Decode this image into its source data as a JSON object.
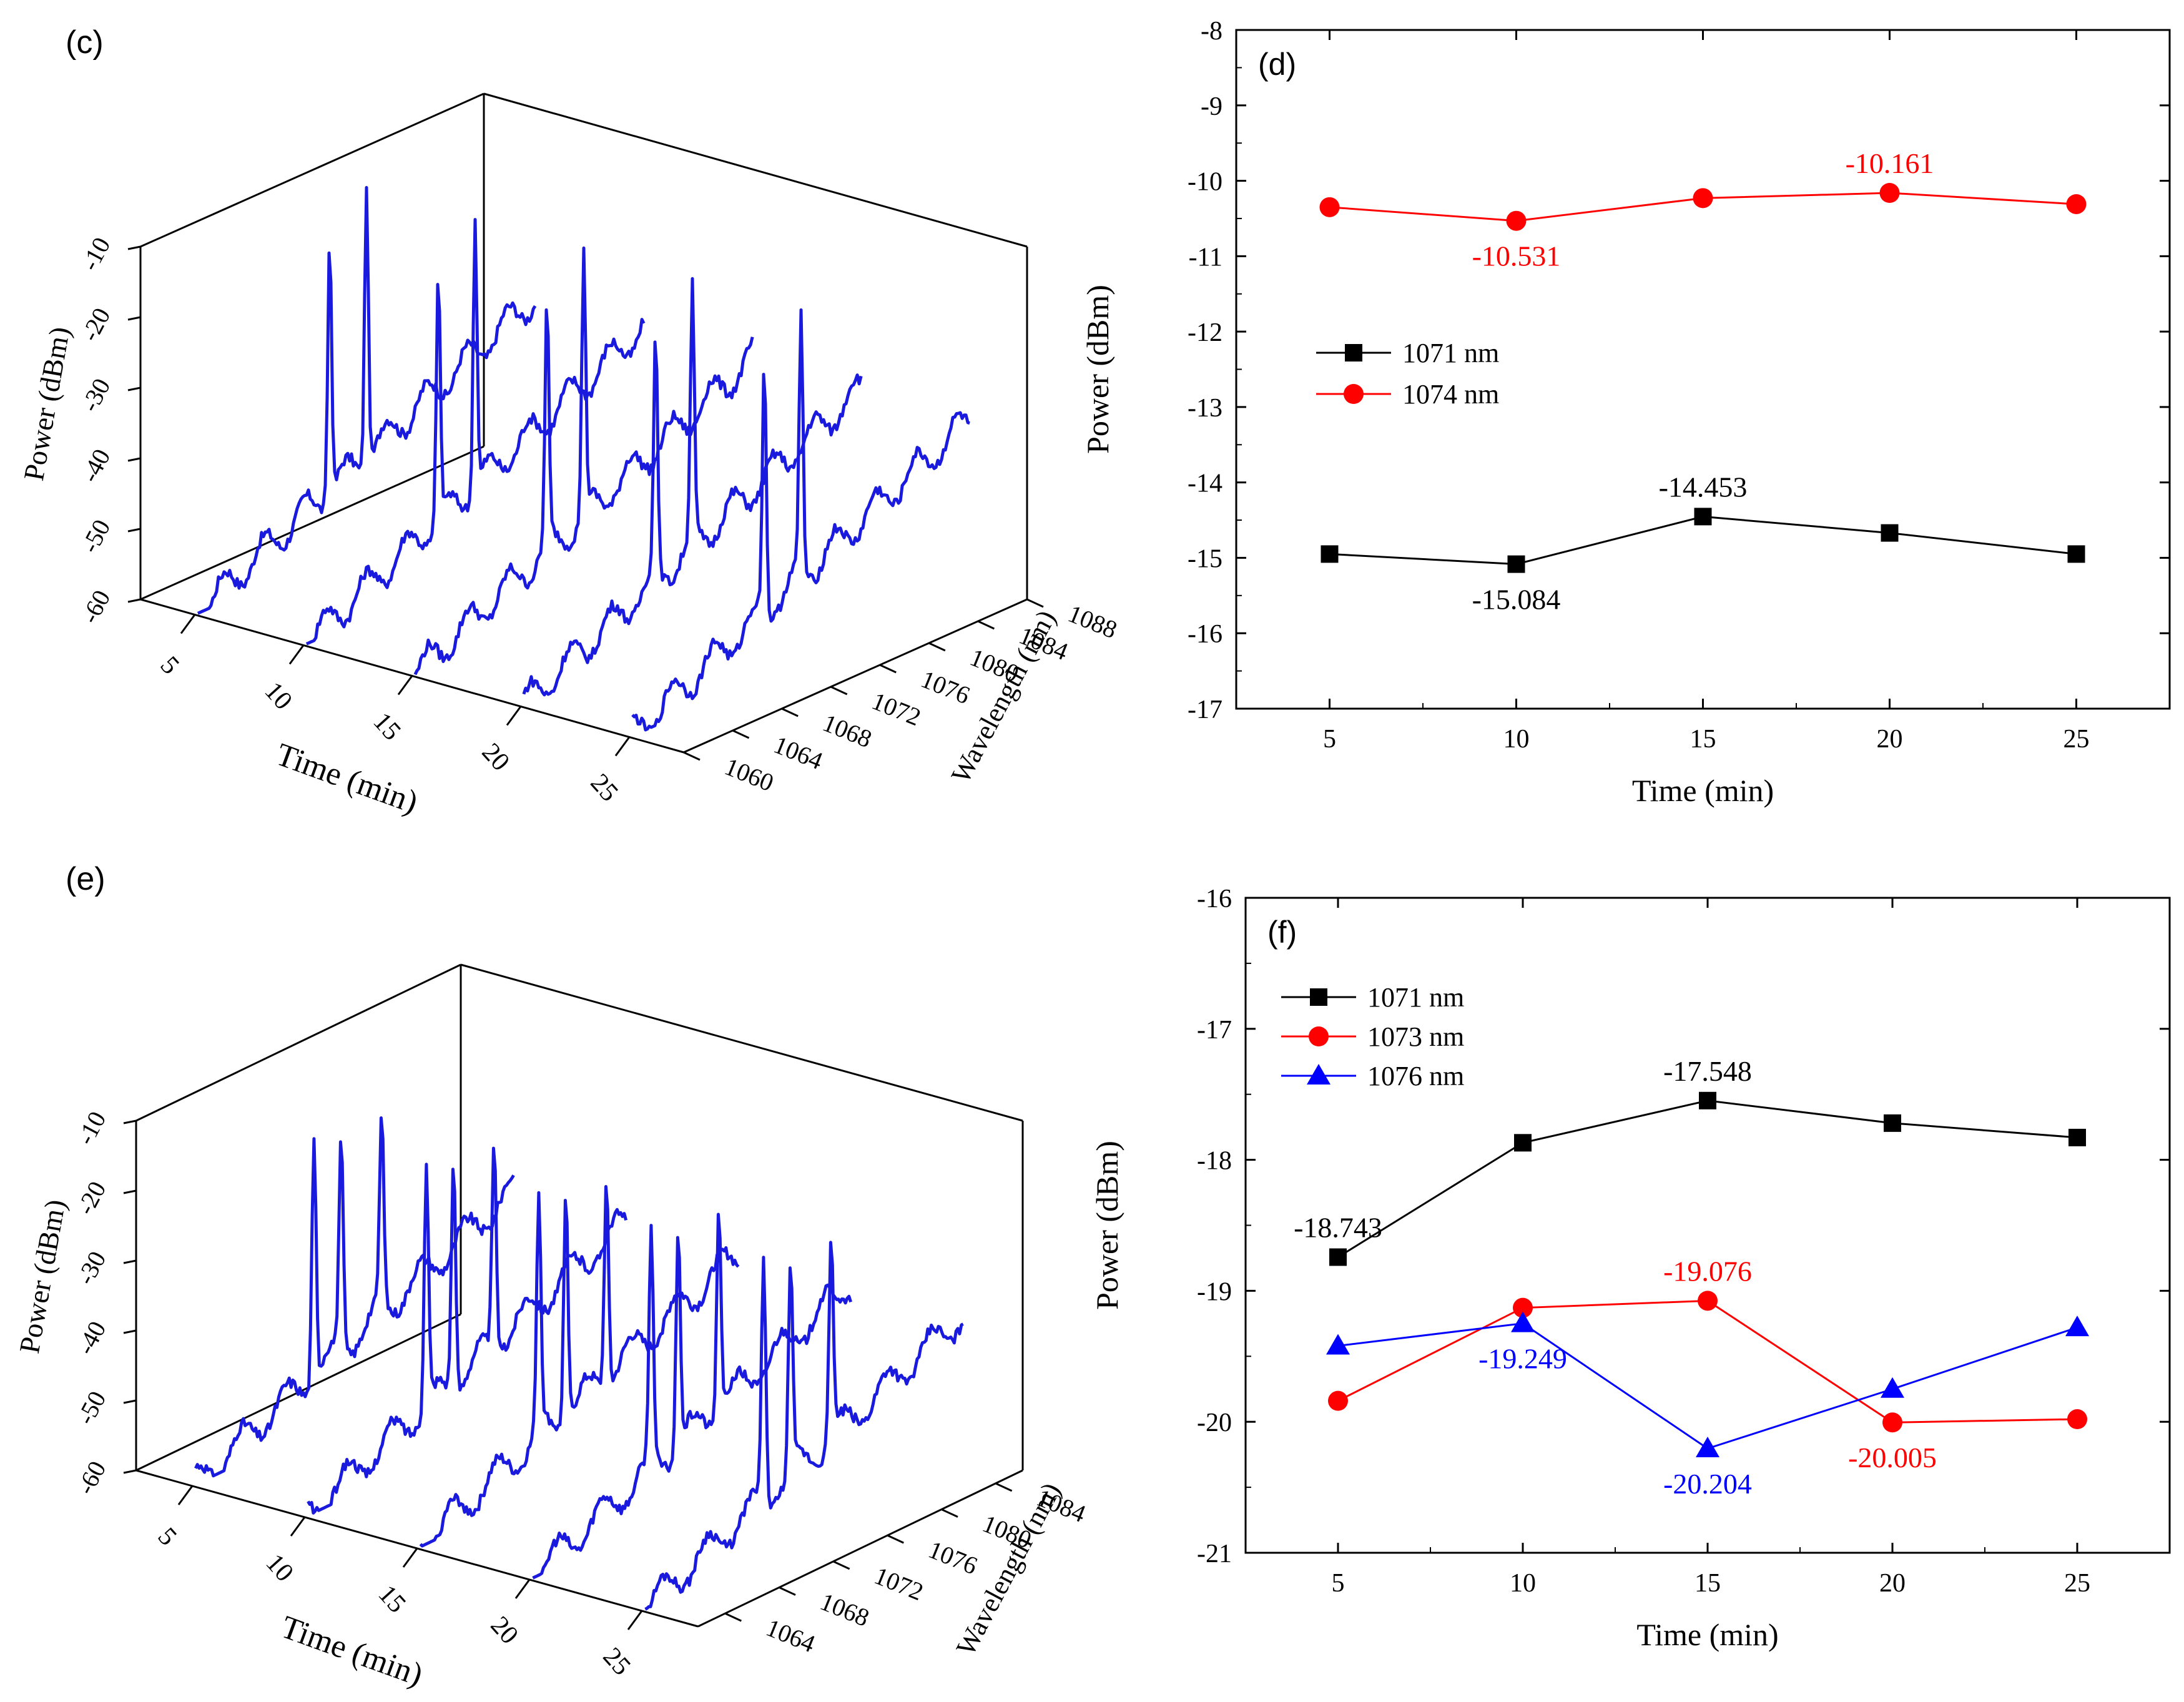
{
  "chart_data": [
    {
      "panel": "c",
      "type": "waterfall-3d",
      "label": "(c)",
      "xlabel": "Time (min)",
      "ylabel": "Wavelength (nm)",
      "zlabel": "Power (dBm)",
      "time_ticks": [
        "5",
        "10",
        "15",
        "20",
        "25"
      ],
      "wavelength_ticks": [
        "1060",
        "1064",
        "1068",
        "1072",
        "1076",
        "1080",
        "1084",
        "1088"
      ],
      "power_ticks": [
        "-60",
        "-50",
        "-40",
        "-30",
        "-20",
        "-10"
      ],
      "wavelength_range": [
        1060,
        1088
      ],
      "power_range": [
        -60,
        -10
      ],
      "time_values": [
        5,
        10,
        15,
        20,
        25
      ],
      "series_color": "#1a1adf",
      "peaks_nm": [
        1071,
        1074
      ],
      "peak_power_dBm": [
        [
          -14.9,
          -10.3
        ],
        [
          -15.1,
          -10.5
        ],
        [
          -14.5,
          -10.2
        ],
        [
          -14.7,
          -10.2
        ],
        [
          -14.9,
          -10.3
        ]
      ]
    },
    {
      "panel": "d",
      "type": "line",
      "label": "(d)",
      "xlabel": "Time (min)",
      "ylabel": "Power (dBm)",
      "x": [
        5,
        10,
        15,
        20,
        25
      ],
      "x_ticks": [
        "5",
        "10",
        "15",
        "20",
        "25"
      ],
      "y_ticks": [
        "-17",
        "-16",
        "-15",
        "-14",
        "-13",
        "-12",
        "-11",
        "-10",
        "-9",
        "-8"
      ],
      "xlim": [
        2.5,
        27.5
      ],
      "ylim": [
        -17,
        -8
      ],
      "legend_position": "middle-left",
      "series": [
        {
          "name": "1071 nm",
          "marker": "square",
          "color": "#000000",
          "values": [
            -14.95,
            -15.084,
            -14.453,
            -14.67,
            -14.95
          ]
        },
        {
          "name": "1074 nm",
          "marker": "circle",
          "color": "#ff0000",
          "values": [
            -10.35,
            -10.531,
            -10.23,
            -10.161,
            -10.31
          ]
        }
      ],
      "annotations": [
        {
          "text": "-10.531",
          "x": 10,
          "y": -10.531,
          "color": "#ff0000",
          "place": "below"
        },
        {
          "text": "-10.161",
          "x": 20,
          "y": -10.161,
          "color": "#ff0000",
          "place": "above"
        },
        {
          "text": "-14.453",
          "x": 15,
          "y": -14.453,
          "color": "#000000",
          "place": "above"
        },
        {
          "text": "-15.084",
          "x": 10,
          "y": -15.084,
          "color": "#000000",
          "place": "below"
        }
      ]
    },
    {
      "panel": "e",
      "type": "waterfall-3d",
      "label": "(e)",
      "xlabel": "Time (min)",
      "ylabel": "Wavelength (nm)",
      "zlabel": "Power (dBm)",
      "time_ticks": [
        "5",
        "10",
        "15",
        "20",
        "25"
      ],
      "wavelength_ticks": [
        "1064",
        "1068",
        "1072",
        "1076",
        "1080",
        "1084"
      ],
      "power_ticks": [
        "-60",
        "-50",
        "-40",
        "-30",
        "-20",
        "-10"
      ],
      "wavelength_range": [
        1062,
        1086
      ],
      "power_range": [
        -60,
        -10
      ],
      "time_values": [
        5,
        10,
        15,
        20,
        25
      ],
      "series_color": "#1a1adf",
      "peaks_nm": [
        1071,
        1073,
        1076
      ],
      "peak_power_dBm": [
        [
          -18.7,
          -19.8,
          -19.4
        ],
        [
          -17.9,
          -19.1,
          -19.2
        ],
        [
          -17.5,
          -19.1,
          -20.2
        ],
        [
          -17.7,
          -20.0,
          -19.7
        ],
        [
          -17.8,
          -20.0,
          -19.3
        ]
      ]
    },
    {
      "panel": "f",
      "type": "line",
      "label": "(f)",
      "xlabel": "Time (min)",
      "ylabel": "Power (dBm)",
      "x": [
        5,
        10,
        15,
        20,
        25
      ],
      "x_ticks": [
        "5",
        "10",
        "15",
        "20",
        "25"
      ],
      "y_ticks": [
        "-21",
        "-20",
        "-19",
        "-18",
        "-17",
        "-16"
      ],
      "xlim": [
        2.5,
        27.5
      ],
      "ylim": [
        -21,
        -16
      ],
      "legend_position": "top-left",
      "series": [
        {
          "name": "1071 nm",
          "marker": "square",
          "color": "#000000",
          "values": [
            -18.743,
            -17.87,
            -17.548,
            -17.72,
            -17.83
          ]
        },
        {
          "name": "1073 nm",
          "marker": "circle",
          "color": "#ff0000",
          "values": [
            -19.84,
            -19.13,
            -19.076,
            -20.005,
            -19.98
          ]
        },
        {
          "name": "1076 nm",
          "marker": "triangle",
          "color": "#0000ff",
          "values": [
            -19.42,
            -19.249,
            -20.204,
            -19.75,
            -19.28
          ]
        }
      ],
      "annotations": [
        {
          "text": "-17.548",
          "x": 15,
          "y": -17.548,
          "color": "#000000",
          "place": "above"
        },
        {
          "text": "-18.743",
          "x": 5,
          "y": -18.743,
          "color": "#000000",
          "place": "above"
        },
        {
          "text": "-19.076",
          "x": 15,
          "y": -19.076,
          "color": "#ff0000",
          "place": "above"
        },
        {
          "text": "-19.249",
          "x": 10,
          "y": -19.249,
          "color": "#0000ff",
          "place": "below"
        },
        {
          "text": "-20.204",
          "x": 15,
          "y": -20.204,
          "color": "#0000ff",
          "place": "below"
        },
        {
          "text": "-20.005",
          "x": 20,
          "y": -20.005,
          "color": "#ff0000",
          "place": "below"
        }
      ]
    }
  ]
}
